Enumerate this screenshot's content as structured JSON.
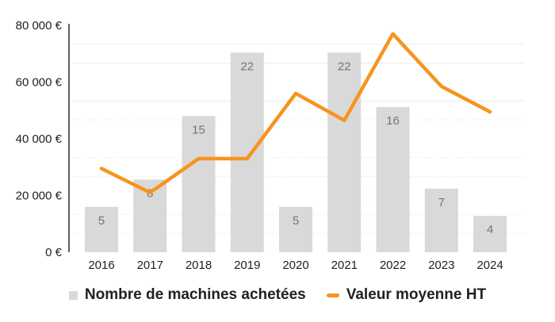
{
  "colors": {
    "background": "#ffffff",
    "bar": "#d9d9d9",
    "line": "#f7941e",
    "bar_label": "#757575",
    "axis_text": "#1f1f1f",
    "axis_line": "#616161",
    "grid_minor": "#ececec",
    "legend_text": "#212121"
  },
  "legend": {
    "items": [
      {
        "label": "Nombre de machines achetées",
        "swatch": "gray-square"
      },
      {
        "label": "Valeur moyenne HT",
        "swatch": "orange-dash"
      }
    ]
  },
  "chart_data": {
    "type": "combo",
    "title": "",
    "categories": [
      "2016",
      "2017",
      "2018",
      "2019",
      "2020",
      "2021",
      "2022",
      "2023",
      "2024"
    ],
    "series": [
      {
        "name": "Nombre de machines achetées",
        "type": "bar",
        "color": "#d9d9d9",
        "axis": "count",
        "values": [
          5,
          8,
          15,
          22,
          5,
          22,
          16,
          7,
          4
        ],
        "data_labels": [
          "5",
          "8",
          "15",
          "22",
          "5",
          "22",
          "16",
          "7",
          "4"
        ]
      },
      {
        "name": "Valeur moyenne HT",
        "type": "line",
        "color": "#f7941e",
        "axis": "value",
        "values": [
          29500,
          21000,
          33000,
          33000,
          56000,
          46500,
          77000,
          58500,
          49500
        ]
      }
    ],
    "value_axis": {
      "min": 0,
      "max": 80000,
      "tick_step": 20000,
      "tick_labels": [
        "0 €",
        "20 000 €",
        "40 000 €",
        "60 000 €",
        "80 000 €"
      ],
      "side": "left"
    },
    "count_axis": {
      "min": 0,
      "max": 25,
      "visible": false
    },
    "grid": "minor gridlines at thirds between major ticks, majors hidden",
    "legend_position": "bottom",
    "xlabel": "",
    "ylabel": ""
  }
}
